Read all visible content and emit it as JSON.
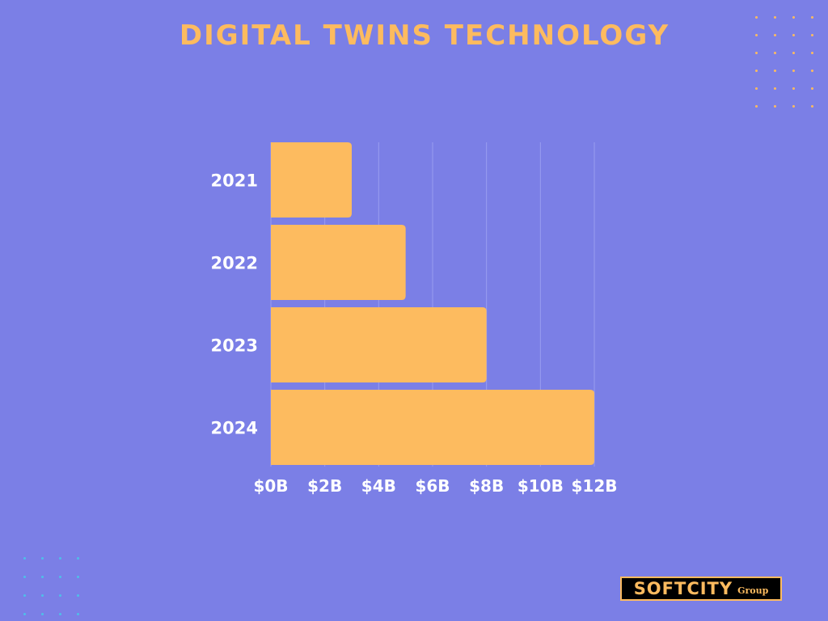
{
  "page": {
    "background": "#7b7fe6",
    "accent": "#fdbb5f",
    "dot_accent": "#4ec0e8"
  },
  "logo": {
    "main": "SOFTCITY",
    "sub": "Group"
  },
  "chart_data": {
    "type": "bar",
    "orientation": "horizontal",
    "title": "DIGITAL TWINS TECHNOLOGY",
    "categories": [
      "2021",
      "2022",
      "2023",
      "2024"
    ],
    "values": [
      3,
      5,
      8,
      12
    ],
    "unit": "billion USD",
    "xlim": [
      0,
      12
    ],
    "xticks": [
      0,
      2,
      4,
      6,
      8,
      10,
      12
    ],
    "xtick_labels": [
      "$0B",
      "$2B",
      "$4B",
      "$6B",
      "$8B",
      "$10B",
      "$12B"
    ],
    "xlabel": "",
    "ylabel": "",
    "grid": true,
    "legend": "none",
    "bar_color": "#fdbb5f"
  }
}
